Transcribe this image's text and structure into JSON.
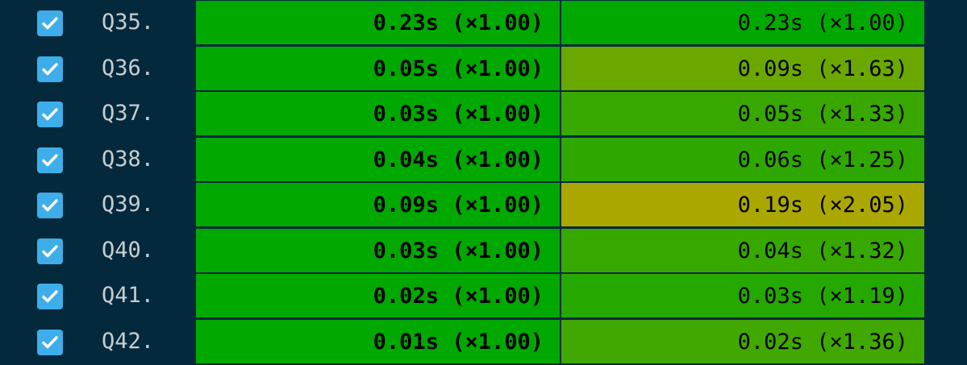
{
  "rows": [
    {
      "label": "Q35.",
      "checked": true,
      "base": "0.23s (×1.00)",
      "compare": "0.23s (×1.00)",
      "base_color": "#00a800",
      "compare_color": "#00a800"
    },
    {
      "label": "Q36.",
      "checked": true,
      "base": "0.05s (×1.00)",
      "compare": "0.09s (×1.63)",
      "base_color": "#00a800",
      "compare_color": "#6aa800"
    },
    {
      "label": "Q37.",
      "checked": true,
      "base": "0.03s (×1.00)",
      "compare": "0.05s (×1.33)",
      "base_color": "#00a800",
      "compare_color": "#38a800"
    },
    {
      "label": "Q38.",
      "checked": true,
      "base": "0.04s (×1.00)",
      "compare": "0.06s (×1.25)",
      "base_color": "#00a800",
      "compare_color": "#2ea800"
    },
    {
      "label": "Q39.",
      "checked": true,
      "base": "0.09s (×1.00)",
      "compare": "0.19s (×2.05)",
      "base_color": "#00a800",
      "compare_color": "#aaa800"
    },
    {
      "label": "Q40.",
      "checked": true,
      "base": "0.03s (×1.00)",
      "compare": "0.04s (×1.32)",
      "base_color": "#00a800",
      "compare_color": "#36a800"
    },
    {
      "label": "Q41.",
      "checked": true,
      "base": "0.02s (×1.00)",
      "compare": "0.03s (×1.19)",
      "base_color": "#00a800",
      "compare_color": "#25a800"
    },
    {
      "label": "Q42.",
      "checked": true,
      "base": "0.01s (×1.00)",
      "compare": "0.02s (×1.36)",
      "base_color": "#00a800",
      "compare_color": "#40a800"
    }
  ]
}
